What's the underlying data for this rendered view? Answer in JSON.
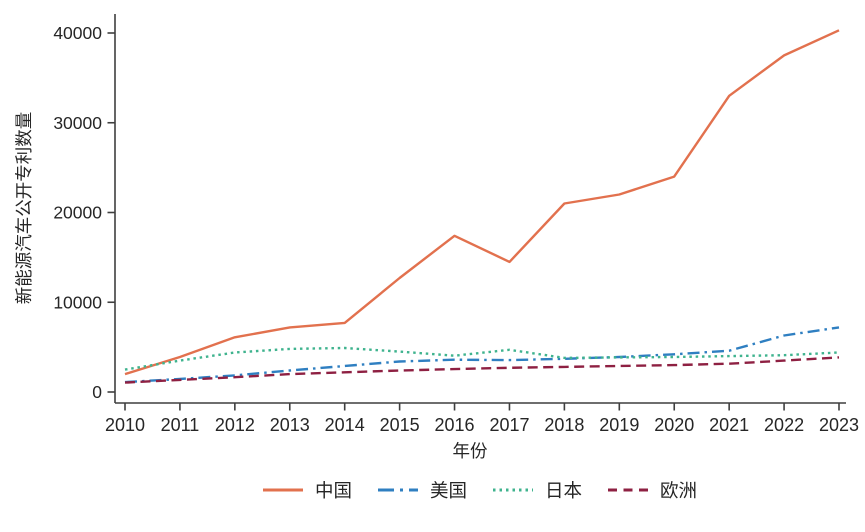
{
  "figure": {
    "background": "#ffffff"
  },
  "chart_data": {
    "type": "line",
    "title": "",
    "xlabel": "年份",
    "ylabel": "新能源汽车公开专利数量",
    "x": [
      2010,
      2011,
      2012,
      2013,
      2014,
      2015,
      2016,
      2017,
      2018,
      2019,
      2020,
      2021,
      2022,
      2023
    ],
    "series": [
      {
        "id": "china",
        "name": "中国",
        "color": "#e2714e",
        "line_style": "solid",
        "values": [
          2000,
          3900,
          6100,
          7200,
          7700,
          12700,
          17400,
          14500,
          21000,
          22000,
          24000,
          33000,
          37500,
          40300
        ]
      },
      {
        "id": "usa",
        "name": "美国",
        "color": "#2f7fc1",
        "line_style": "dashdot",
        "values": [
          1100,
          1450,
          1850,
          2400,
          2900,
          3400,
          3600,
          3550,
          3700,
          3900,
          4200,
          4600,
          6300,
          7200
        ]
      },
      {
        "id": "japan",
        "name": "日本",
        "color": "#3fb38e",
        "line_style": "dotted",
        "values": [
          2500,
          3500,
          4400,
          4800,
          4900,
          4500,
          4050,
          4700,
          3800,
          3850,
          3900,
          4000,
          4100,
          4400
        ]
      },
      {
        "id": "europe",
        "name": "欧洲",
        "color": "#8e2042",
        "line_style": "dashed",
        "values": [
          1050,
          1350,
          1650,
          2000,
          2200,
          2400,
          2550,
          2700,
          2800,
          2900,
          3000,
          3150,
          3500,
          3850
        ]
      }
    ],
    "ylim": [
      0,
      40000
    ],
    "yticks": [
      0,
      10000,
      20000,
      30000,
      40000
    ],
    "xticks": [
      2010,
      2011,
      2012,
      2013,
      2014,
      2015,
      2016,
      2017,
      2018,
      2019,
      2020,
      2021,
      2022,
      2023
    ],
    "grid": false,
    "legend_position": "bottom",
    "axis_color": "#3f3f3f",
    "text_color": "#262626"
  }
}
